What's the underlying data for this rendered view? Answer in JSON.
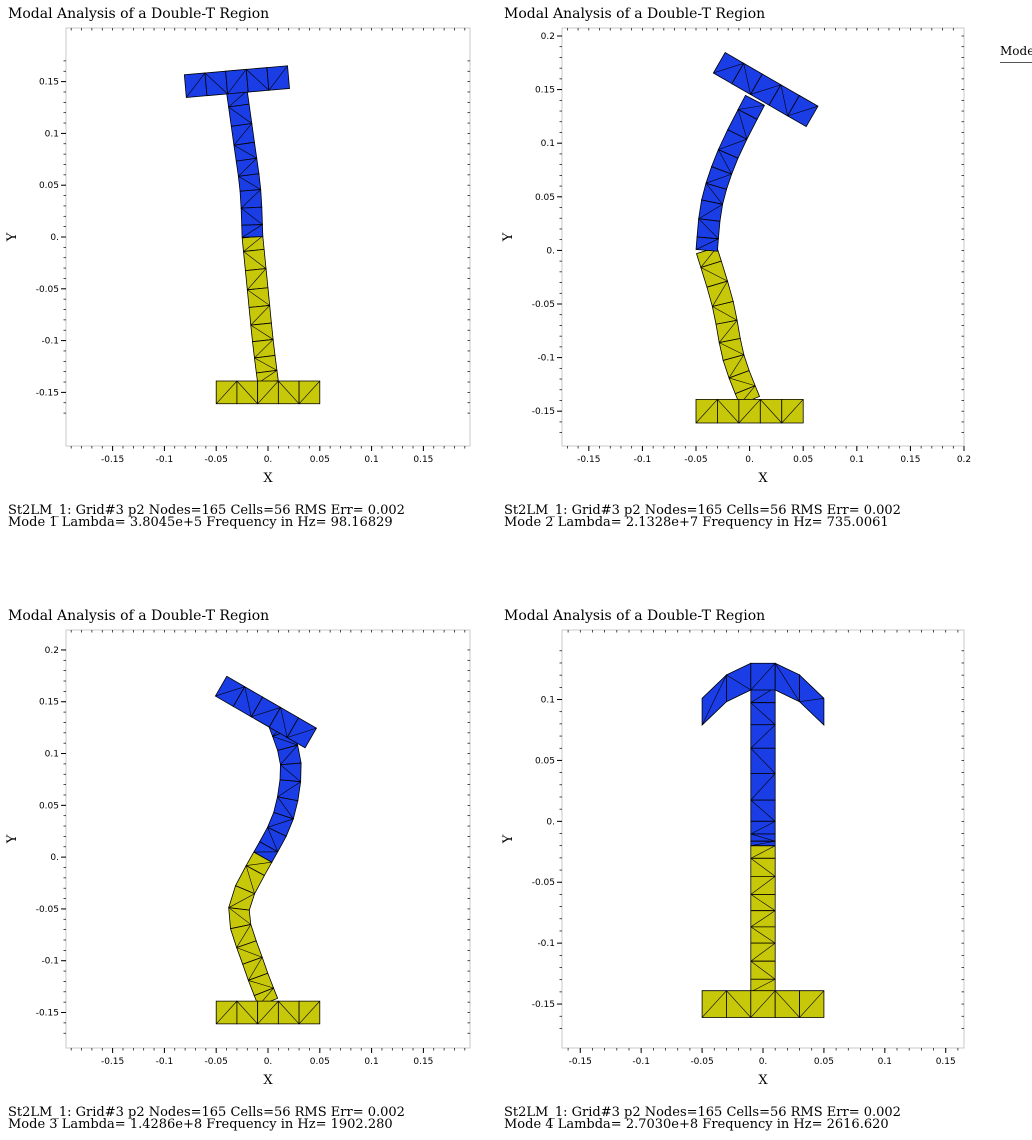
{
  "side_label": "Mode",
  "chart_data": [
    {
      "type": "scatter",
      "title": "Modal Analysis of a Double-T Region",
      "xlabel": "X",
      "ylabel": "Y",
      "xlim": [
        -0.195,
        0.195
      ],
      "ylim": [
        -0.175,
        0.175
      ],
      "xticks": [
        "-0.15",
        "-0.1",
        "-0.05",
        "0.",
        "0.05",
        "0.1",
        "0.15"
      ],
      "yticks": [
        "0.15",
        "0.1",
        "0.05",
        "0.",
        "-0.05",
        "-0.1",
        "-0.15"
      ],
      "grid": false,
      "colors": {
        "upper": "#1a3de6",
        "lower": "#c8c80a",
        "mesh": "#000000"
      },
      "footer": [
        "St2LM_1:  Grid#3  p2  Nodes=165 Cells=56 RMS Err= 0.002",
        "Mode 1  Lambda= 3.8045e+5  Frequency in Hz=  98.16829"
      ],
      "shape": {
        "top_flange": {
          "cx": -0.03,
          "cy": 0.15,
          "angle_deg": 5
        },
        "web_upper": [
          [
            -0.03,
            0.14
          ],
          [
            -0.023,
            0.09
          ],
          [
            -0.017,
            0.045
          ],
          [
            -0.015,
            0.0
          ]
        ],
        "web_lower": [
          [
            -0.015,
            0.0
          ],
          [
            -0.01,
            -0.05
          ],
          [
            -0.005,
            -0.1
          ],
          [
            0.0,
            -0.14
          ]
        ],
        "bottom_flange": {
          "cx": 0.0,
          "cy": -0.15,
          "angle_deg": 0
        }
      }
    },
    {
      "type": "scatter",
      "title": "Modal Analysis of a Double-T Region",
      "xlabel": "X",
      "ylabel": "Y",
      "xlim": [
        -0.175,
        0.2
      ],
      "ylim": [
        -0.177,
        0.202
      ],
      "xticks": [
        "-0.15",
        "-0.1",
        "-0.05",
        "0.",
        "0.05",
        "0.1",
        "0.15",
        "0.2"
      ],
      "yticks": [
        "0.2",
        "0.15",
        "0.1",
        "0.05",
        "0.",
        "-0.05",
        "-0.1",
        "-0.15"
      ],
      "grid": false,
      "colors": {
        "upper": "#1a3de6",
        "lower": "#c8c80a",
        "mesh": "#000000"
      },
      "footer": [
        "St2LM_1:  Grid#3  p2  Nodes=165 Cells=56 RMS Err= 0.002",
        "Mode 2  Lambda= 2.1328e+7  Frequency in Hz=  735.0061"
      ],
      "shape": {
        "top_flange": {
          "cx": 0.015,
          "cy": 0.15,
          "angle_deg": -30
        },
        "web_upper": [
          [
            0.005,
            0.14
          ],
          [
            -0.02,
            0.09
          ],
          [
            -0.035,
            0.045
          ],
          [
            -0.04,
            0.0
          ]
        ],
        "web_lower": [
          [
            -0.04,
            0.0
          ],
          [
            -0.025,
            -0.05
          ],
          [
            -0.015,
            -0.1
          ],
          [
            0.0,
            -0.14
          ]
        ],
        "bottom_flange": {
          "cx": 0.0,
          "cy": -0.15,
          "angle_deg": 0
        }
      }
    },
    {
      "type": "scatter",
      "title": "Modal Analysis of a Double-T Region",
      "xlabel": "X",
      "ylabel": "Y",
      "xlim": [
        -0.195,
        0.195
      ],
      "ylim": [
        -0.175,
        0.21
      ],
      "xticks": [
        "-0.15",
        "-0.1",
        "-0.05",
        "0.",
        "0.05",
        "0.1",
        "0.15"
      ],
      "yticks": [
        "0.2",
        "0.15",
        "0.1",
        "0.05",
        "0.",
        "-0.05",
        "-0.1",
        "-0.15"
      ],
      "grid": false,
      "colors": {
        "upper": "#1a3de6",
        "lower": "#c8c80a",
        "mesh": "#000000"
      },
      "footer": [
        "St2LM_1:  Grid#3  p2  Nodes=165 Cells=56 RMS Err= 0.002",
        "Mode 3  Lambda= 1.4286e+8  Frequency in Hz=  1902.280"
      ],
      "shape": {
        "top_flange": {
          "cx": -0.002,
          "cy": 0.14,
          "angle_deg": -30
        },
        "web_upper": [
          [
            0.01,
            0.13
          ],
          [
            0.022,
            0.09
          ],
          [
            0.015,
            0.04
          ],
          [
            -0.005,
            0.0
          ]
        ],
        "web_lower": [
          [
            -0.005,
            0.0
          ],
          [
            -0.028,
            -0.05
          ],
          [
            -0.015,
            -0.1
          ],
          [
            0.0,
            -0.14
          ]
        ],
        "bottom_flange": {
          "cx": 0.0,
          "cy": -0.15,
          "angle_deg": 0
        }
      }
    },
    {
      "type": "scatter",
      "title": "Modal Analysis of a Double-T Region",
      "xlabel": "X",
      "ylabel": "Y",
      "xlim": [
        -0.165,
        0.165
      ],
      "ylim": [
        -0.172,
        0.143
      ],
      "xticks": [
        "-0.15",
        "-0.1",
        "-0.05",
        "0.",
        "0.05",
        "0.1",
        "0.15"
      ],
      "yticks": [
        "0.1",
        "0.05",
        "0.",
        "-0.05",
        "-0.1",
        "-0.15"
      ],
      "grid": false,
      "colors": {
        "upper": "#1a3de6",
        "lower": "#c8c80a",
        "mesh": "#000000"
      },
      "footer": [
        "St2LM_1:  Grid#3  p2  Nodes=165 Cells=56 RMS Err= 0.002",
        "Mode 4  Lambda= 2.7030e+8  Frequency in Hz=  2616.620"
      ],
      "shape": {
        "top_flange": {
          "cx": 0.0,
          "cy": 0.12,
          "angle_deg": 0,
          "arched": true
        },
        "web_upper": [
          [
            0.0,
            0.11
          ],
          [
            0.0,
            0.06
          ],
          [
            0.0,
            0.0
          ],
          [
            0.0,
            -0.02
          ]
        ],
        "web_lower": [
          [
            0.0,
            -0.02
          ],
          [
            0.0,
            -0.06
          ],
          [
            0.0,
            -0.1
          ],
          [
            0.0,
            -0.14
          ]
        ],
        "bottom_flange": {
          "cx": 0.0,
          "cy": -0.15,
          "angle_deg": 0
        }
      }
    }
  ]
}
